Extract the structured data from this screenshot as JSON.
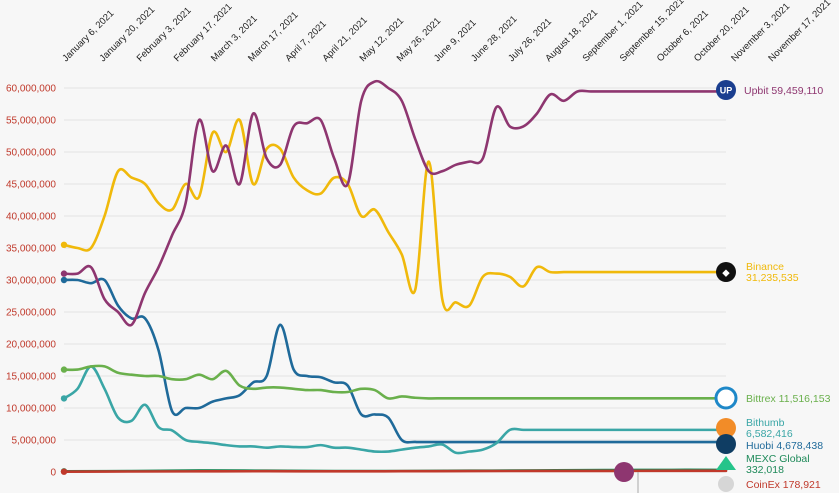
{
  "chart_data": {
    "type": "line",
    "title": "",
    "xlabel": "",
    "ylabel": "",
    "ylim": [
      0,
      60000000
    ],
    "y_ticks": [
      0,
      5000000,
      10000000,
      15000000,
      20000000,
      25000000,
      30000000,
      35000000,
      40000000,
      45000000,
      50000000,
      55000000,
      60000000
    ],
    "y_tick_labels": [
      "0",
      "5,000,000",
      "10,000,000",
      "15,000,000",
      "20,000,000",
      "25,000,000",
      "30,000,000",
      "35,000,000",
      "40,000,000",
      "45,000,000",
      "50,000,000",
      "55,000,000",
      "60,000,000"
    ],
    "x_tick_labels": [
      "January 6, 2021",
      "January 20, 2021",
      "February 3, 2021",
      "February 17, 2021",
      "March 3, 2021",
      "March 17, 2021",
      "April 7, 2021",
      "April 21, 2021",
      "May 12, 2021",
      "May 26, 2021",
      "June 9, 2021",
      "June 28, 2021",
      "July 26, 2021",
      "August 18, 2021",
      "September 1, 2021",
      "September 15, 2021",
      "October 6, 2021",
      "October 20, 2021",
      "November 3, 2021",
      "November 17, 2021"
    ],
    "grid": true,
    "legend": "end-of-line labels",
    "series": [
      {
        "name": "Upbit",
        "value_label": "59,459,110",
        "color": "#8e3670",
        "x": [
          0,
          1,
          2,
          3,
          4,
          5,
          6,
          7,
          8,
          9,
          10,
          11,
          12,
          13,
          14,
          15,
          16,
          17,
          18,
          19,
          20,
          21,
          22,
          23,
          24,
          25,
          26,
          27,
          28,
          29,
          30,
          31,
          32,
          33,
          34,
          35,
          36,
          37,
          38,
          39,
          40,
          41,
          42,
          43,
          44,
          45,
          46,
          47,
          48,
          49
        ],
        "y": [
          31000000,
          31000000,
          32000000,
          27000000,
          25000000,
          23000000,
          28000000,
          32000000,
          37000000,
          42000000,
          55000000,
          47000000,
          51000000,
          45000000,
          56000000,
          49000000,
          48000000,
          54000000,
          54500000,
          55000000,
          49000000,
          45000000,
          58000000,
          61000000,
          60000000,
          58000000,
          52000000,
          47000000,
          47000000,
          48000000,
          48500000,
          49000000,
          57000000,
          54000000,
          54000000,
          56000000,
          59000000,
          58000000,
          59459110,
          59459110,
          59459110,
          59459110,
          59459110,
          59459110,
          59459110,
          59459110,
          59459110,
          59459110,
          59459110,
          59459110
        ]
      },
      {
        "name": "Binance",
        "value_label": "31,235,535",
        "color": "#f0b90b",
        "x": [
          0,
          1,
          2,
          3,
          4,
          5,
          6,
          7,
          8,
          9,
          10,
          11,
          12,
          13,
          14,
          15,
          16,
          17,
          18,
          19,
          20,
          21,
          22,
          23,
          24,
          25,
          26,
          27,
          28,
          29,
          30,
          31,
          32,
          33,
          34,
          35,
          36,
          37,
          38,
          39,
          40,
          41,
          42,
          43,
          44,
          45,
          46,
          47,
          48,
          49
        ],
        "y": [
          35500000,
          35000000,
          35000000,
          40000000,
          47000000,
          46000000,
          45000000,
          42000000,
          41000000,
          45000000,
          43000000,
          53000000,
          50000000,
          55000000,
          45000000,
          50500000,
          50500000,
          46000000,
          44000000,
          43500000,
          46000000,
          45000000,
          40000000,
          41000000,
          37500000,
          34000000,
          28500000,
          48500000,
          27000000,
          26500000,
          26000000,
          30500000,
          31000000,
          30500000,
          29000000,
          32000000,
          31235535,
          31235535,
          31235535,
          31235535,
          31235535,
          31235535,
          31235535,
          31235535,
          31235535,
          31235535,
          31235535,
          31235535,
          31235535,
          31235535
        ]
      },
      {
        "name": "Bittrex",
        "value_label": "11,516,153",
        "color": "#6ab04c",
        "x": [
          0,
          1,
          2,
          3,
          4,
          5,
          6,
          7,
          8,
          9,
          10,
          11,
          12,
          13,
          14,
          15,
          16,
          17,
          18,
          19,
          20,
          21,
          22,
          23,
          24,
          25,
          26,
          27,
          28,
          29,
          30,
          31,
          32,
          33,
          34,
          35,
          36,
          37,
          38,
          39,
          40,
          41,
          42,
          43,
          44,
          45,
          46,
          47,
          48,
          49
        ],
        "y": [
          16000000,
          16000000,
          16500000,
          16500000,
          15500000,
          15200000,
          15000000,
          15000000,
          14500000,
          14500000,
          15200000,
          14500000,
          15800000,
          13500000,
          13000000,
          13200000,
          13200000,
          13000000,
          12800000,
          12800000,
          12500000,
          12500000,
          13000000,
          12800000,
          11500000,
          11800000,
          11600000,
          11500000,
          11516153,
          11516153,
          11516153,
          11516153,
          11516153,
          11516153,
          11516153,
          11516153,
          11516153,
          11516153,
          11516153,
          11516153,
          11516153,
          11516153,
          11516153,
          11516153,
          11516153,
          11516153,
          11516153,
          11516153,
          11516153,
          11516153
        ]
      },
      {
        "name": "Bithumb",
        "value_label": "6,582,416",
        "color": "#3aa6a6",
        "x": [
          0,
          1,
          2,
          3,
          4,
          5,
          6,
          7,
          8,
          9,
          10,
          11,
          12,
          13,
          14,
          15,
          16,
          17,
          18,
          19,
          20,
          21,
          22,
          23,
          24,
          25,
          26,
          27,
          28,
          29,
          30,
          31,
          32,
          33,
          34,
          35,
          36,
          37,
          38,
          39,
          40,
          41,
          42,
          43,
          44,
          45,
          46,
          47,
          48,
          49
        ],
        "y": [
          11500000,
          13000000,
          16500000,
          13000000,
          8500000,
          8000000,
          10500000,
          7000000,
          6500000,
          5000000,
          4700000,
          4500000,
          4200000,
          4000000,
          4000000,
          3800000,
          4000000,
          3900000,
          3900000,
          4200000,
          3800000,
          3800000,
          3500000,
          3200000,
          3200000,
          3500000,
          3800000,
          4000000,
          4300000,
          3000000,
          3200000,
          3500000,
          4500000,
          6582416,
          6582416,
          6582416,
          6582416,
          6582416,
          6582416,
          6582416,
          6582416,
          6582416,
          6582416,
          6582416,
          6582416,
          6582416,
          6582416,
          6582416,
          6582416,
          6582416
        ]
      },
      {
        "name": "Huobi",
        "value_label": "4,678,438",
        "color": "#1f6a9a",
        "x": [
          0,
          1,
          2,
          3,
          4,
          5,
          6,
          7,
          8,
          9,
          10,
          11,
          12,
          13,
          14,
          15,
          16,
          17,
          18,
          19,
          20,
          21,
          22,
          23,
          24,
          25,
          26,
          27,
          28,
          29,
          30,
          31,
          32,
          33,
          34,
          35,
          36,
          37,
          38,
          39,
          40,
          41,
          42,
          43,
          44,
          45,
          46,
          47,
          48,
          49
        ],
        "y": [
          30000000,
          30000000,
          29500000,
          30000000,
          26000000,
          24000000,
          24000000,
          19000000,
          9500000,
          10000000,
          10000000,
          11000000,
          11500000,
          12000000,
          14000000,
          15000000,
          23000000,
          16000000,
          15000000,
          14800000,
          14000000,
          13500000,
          9000000,
          9000000,
          8500000,
          5000000,
          4700000,
          4678438,
          4678438,
          4678438,
          4678438,
          4678438,
          4678438,
          4678438,
          4678438,
          4678438,
          4678438,
          4678438,
          4678438,
          4678438,
          4678438,
          4678438,
          4678438,
          4678438,
          4678438,
          4678438,
          4678438,
          4678438,
          4678438,
          4678438
        ]
      },
      {
        "name": "MEXC Global",
        "value_label": "332,018",
        "color": "#1f8a5a",
        "x": [
          0,
          5,
          10,
          15,
          20,
          25,
          30,
          35,
          40,
          45,
          49
        ],
        "y": [
          100000,
          150000,
          250000,
          200000,
          150000,
          150000,
          200000,
          250000,
          300000,
          332018,
          332018
        ]
      },
      {
        "name": "CoinEx",
        "value_label": "178,921",
        "color": "#c0392b",
        "x": [
          0,
          5,
          10,
          15,
          20,
          25,
          30,
          35,
          40,
          45,
          49
        ],
        "y": [
          50000,
          80000,
          100000,
          120000,
          100000,
          120000,
          150000,
          160000,
          170000,
          178921,
          178921
        ]
      }
    ]
  }
}
